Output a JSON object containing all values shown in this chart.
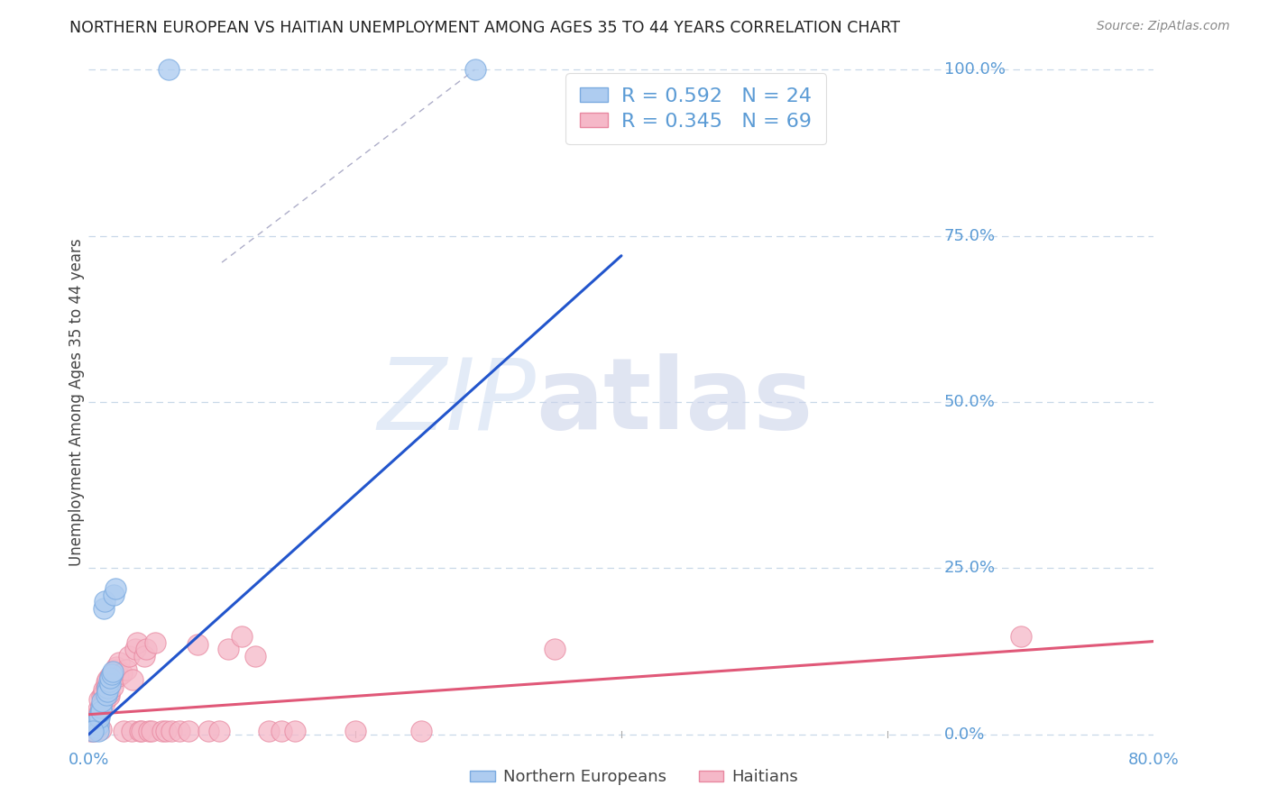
{
  "title": "NORTHERN EUROPEAN VS HAITIAN UNEMPLOYMENT AMONG AGES 35 TO 44 YEARS CORRELATION CHART",
  "source": "Source: ZipAtlas.com",
  "ylabel": "Unemployment Among Ages 35 to 44 years",
  "ytick_labels": [
    "0.0%",
    "25.0%",
    "50.0%",
    "75.0%",
    "100.0%"
  ],
  "ytick_values": [
    0.0,
    0.25,
    0.5,
    0.75,
    1.0
  ],
  "xlim": [
    0.0,
    0.8
  ],
  "ylim": [
    -0.02,
    1.02
  ],
  "ylim_data": [
    0.0,
    1.0
  ],
  "legend_entries": [
    {
      "label": "Northern Europeans",
      "color": "#aeccf0",
      "edge_color": "#7aaae0",
      "R": 0.592,
      "N": 24
    },
    {
      "label": "Haitians",
      "color": "#f5b8c8",
      "edge_color": "#e888a0",
      "R": 0.345,
      "N": 69
    }
  ],
  "title_color": "#222222",
  "axis_label_color": "#5b9bd5",
  "grid_color": "#c8d8e8",
  "blue_line_color": "#2255cc",
  "pink_line_color": "#e05878",
  "dashed_line_color": "#9999bb",
  "watermark_zip_color": "#cddcf2",
  "watermark_atlas_color": "#c8d0e8",
  "northern_european_points": [
    [
      0.005,
      0.01
    ],
    [
      0.006,
      0.02
    ],
    [
      0.007,
      0.015
    ],
    [
      0.007,
      0.005
    ],
    [
      0.008,
      0.03
    ],
    [
      0.008,
      0.025
    ],
    [
      0.009,
      0.04
    ],
    [
      0.009,
      0.035
    ],
    [
      0.01,
      0.05
    ],
    [
      0.011,
      0.19
    ],
    [
      0.012,
      0.2
    ],
    [
      0.013,
      0.06
    ],
    [
      0.014,
      0.07
    ],
    [
      0.014,
      0.065
    ],
    [
      0.015,
      0.08
    ],
    [
      0.016,
      0.075
    ],
    [
      0.016,
      0.085
    ],
    [
      0.017,
      0.09
    ],
    [
      0.018,
      0.095
    ],
    [
      0.019,
      0.21
    ],
    [
      0.02,
      0.22
    ],
    [
      0.06,
      1.0
    ],
    [
      0.29,
      1.0
    ],
    [
      0.003,
      0.005
    ]
  ],
  "haitian_points": [
    [
      0.001,
      0.005
    ],
    [
      0.002,
      0.008
    ],
    [
      0.003,
      0.012
    ],
    [
      0.003,
      0.018
    ],
    [
      0.004,
      0.005
    ],
    [
      0.004,
      0.01
    ],
    [
      0.005,
      0.022
    ],
    [
      0.005,
      0.012
    ],
    [
      0.006,
      0.018
    ],
    [
      0.006,
      0.028
    ],
    [
      0.007,
      0.038
    ],
    [
      0.007,
      0.012
    ],
    [
      0.007,
      0.022
    ],
    [
      0.008,
      0.032
    ],
    [
      0.008,
      0.052
    ],
    [
      0.009,
      0.008
    ],
    [
      0.009,
      0.042
    ],
    [
      0.01,
      0.058
    ],
    [
      0.011,
      0.062
    ],
    [
      0.011,
      0.068
    ],
    [
      0.012,
      0.052
    ],
    [
      0.012,
      0.048
    ],
    [
      0.013,
      0.072
    ],
    [
      0.013,
      0.078
    ],
    [
      0.014,
      0.082
    ],
    [
      0.015,
      0.058
    ],
    [
      0.015,
      0.062
    ],
    [
      0.016,
      0.088
    ],
    [
      0.016,
      0.082
    ],
    [
      0.017,
      0.078
    ],
    [
      0.018,
      0.072
    ],
    [
      0.019,
      0.092
    ],
    [
      0.02,
      0.098
    ],
    [
      0.021,
      0.102
    ],
    [
      0.022,
      0.088
    ],
    [
      0.023,
      0.108
    ],
    [
      0.025,
      0.092
    ],
    [
      0.026,
      0.005
    ],
    [
      0.028,
      0.098
    ],
    [
      0.03,
      0.118
    ],
    [
      0.032,
      0.005
    ],
    [
      0.033,
      0.082
    ],
    [
      0.035,
      0.128
    ],
    [
      0.036,
      0.138
    ],
    [
      0.038,
      0.005
    ],
    [
      0.04,
      0.005
    ],
    [
      0.042,
      0.118
    ],
    [
      0.043,
      0.128
    ],
    [
      0.045,
      0.005
    ],
    [
      0.047,
      0.005
    ],
    [
      0.05,
      0.138
    ],
    [
      0.055,
      0.005
    ],
    [
      0.058,
      0.005
    ],
    [
      0.062,
      0.005
    ],
    [
      0.068,
      0.005
    ],
    [
      0.075,
      0.005
    ],
    [
      0.082,
      0.135
    ],
    [
      0.09,
      0.005
    ],
    [
      0.098,
      0.005
    ],
    [
      0.105,
      0.128
    ],
    [
      0.115,
      0.148
    ],
    [
      0.125,
      0.118
    ],
    [
      0.135,
      0.005
    ],
    [
      0.145,
      0.005
    ],
    [
      0.155,
      0.005
    ],
    [
      0.2,
      0.005
    ],
    [
      0.25,
      0.005
    ],
    [
      0.35,
      0.128
    ],
    [
      0.7,
      0.148
    ]
  ],
  "blue_line_x": [
    0.0,
    0.4
  ],
  "blue_line_y": [
    0.0,
    0.72
  ],
  "pink_line_x": [
    0.0,
    0.8
  ],
  "pink_line_y": [
    0.03,
    0.14
  ],
  "dash_line_x": [
    0.1,
    0.29
  ],
  "dash_line_y": [
    0.71,
    1.0
  ]
}
